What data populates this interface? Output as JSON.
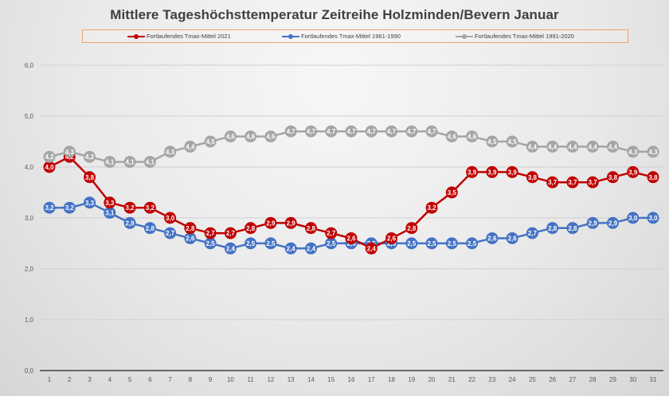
{
  "chart_data": {
    "type": "line",
    "title": "Mittlere Tageshöchsttemperatur Zeitreihe Holzminden/Bevern Januar",
    "xlabel": "",
    "ylabel": "",
    "x": [
      1,
      2,
      3,
      4,
      5,
      6,
      7,
      8,
      9,
      10,
      11,
      12,
      13,
      14,
      15,
      16,
      17,
      18,
      19,
      20,
      21,
      22,
      23,
      24,
      25,
      26,
      27,
      28,
      29,
      30,
      31
    ],
    "ylim": [
      0,
      6
    ],
    "yticks": [
      "0,0",
      "1,0",
      "2,0",
      "3,0",
      "4,0",
      "5,0",
      "6,0"
    ],
    "ytick_values": [
      0,
      1,
      2,
      3,
      4,
      5,
      6
    ],
    "grid": true,
    "legend_position": "top",
    "decimal_separator": ",",
    "series": [
      {
        "name": "Fortlaufendes Tmax-Mittel 2021",
        "color": "#c00000",
        "values": [
          4.0,
          4.2,
          3.8,
          3.3,
          3.2,
          3.2,
          3.0,
          2.8,
          2.7,
          2.7,
          2.8,
          2.9,
          2.9,
          2.8,
          2.7,
          2.6,
          2.4,
          2.6,
          2.8,
          3.2,
          3.5,
          3.9,
          3.9,
          3.9,
          3.8,
          3.7,
          3.7,
          3.7,
          3.8,
          3.9,
          3.8
        ]
      },
      {
        "name": "Fortlaufendes Tmax-Mittel 1961-1990",
        "color": "#4472c4",
        "values": [
          3.2,
          3.2,
          3.3,
          3.1,
          2.9,
          2.8,
          2.7,
          2.6,
          2.5,
          2.4,
          2.5,
          2.5,
          2.4,
          2.4,
          2.5,
          2.5,
          2.5,
          2.5,
          2.5,
          2.5,
          2.5,
          2.5,
          2.6,
          2.6,
          2.7,
          2.8,
          2.8,
          2.9,
          2.9,
          3.0,
          3.0
        ]
      },
      {
        "name": "Fortlaufendes Tmax-Mittel 1991-2020",
        "color": "#a5a5a5",
        "values": [
          4.2,
          4.3,
          4.2,
          4.1,
          4.1,
          4.1,
          4.3,
          4.4,
          4.5,
          4.6,
          4.6,
          4.6,
          4.7,
          4.7,
          4.7,
          4.7,
          4.7,
          4.7,
          4.7,
          4.7,
          4.6,
          4.6,
          4.5,
          4.5,
          4.4,
          4.4,
          4.4,
          4.4,
          4.4,
          4.3,
          4.3
        ]
      }
    ]
  }
}
